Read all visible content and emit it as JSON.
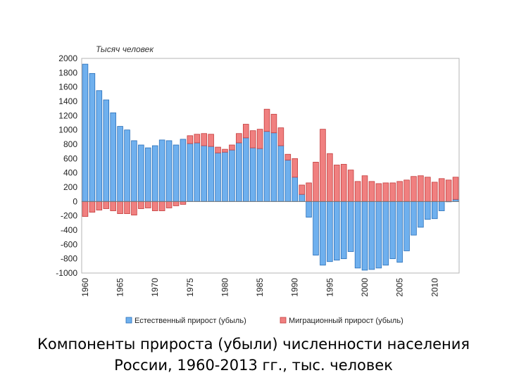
{
  "caption": {
    "line1": "Компоненты прироста (убыли) численности населения",
    "line2": "России, 1960-2013 гг., тыс. человек"
  },
  "chart_data": {
    "type": "bar",
    "stacked": true,
    "unit_label": "Тысяч человек",
    "x": [
      1960,
      1961,
      1962,
      1963,
      1964,
      1965,
      1966,
      1967,
      1968,
      1969,
      1970,
      1971,
      1972,
      1973,
      1974,
      1975,
      1976,
      1977,
      1978,
      1979,
      1980,
      1981,
      1982,
      1983,
      1984,
      1985,
      1986,
      1987,
      1988,
      1989,
      1990,
      1991,
      1992,
      1993,
      1994,
      1995,
      1996,
      1997,
      1998,
      1999,
      2000,
      2001,
      2002,
      2003,
      2004,
      2005,
      2006,
      2007,
      2008,
      2009,
      2010,
      2011,
      2012,
      2013
    ],
    "x_tick_labels": [
      "1960",
      "1965",
      "1970",
      "1975",
      "1980",
      "1985",
      "1990",
      "1995",
      "2000",
      "2005",
      "2010"
    ],
    "y_ticks": [
      2000,
      1800,
      1600,
      1400,
      1200,
      1000,
      800,
      600,
      400,
      200,
      0,
      -200,
      -400,
      -600,
      -800,
      -1000
    ],
    "ylim": [
      -1000,
      2000
    ],
    "grid": false,
    "legend_position": "bottom",
    "series": [
      {
        "name": "Естественный прирост (убыль)",
        "color": "#6fb0ee",
        "values": [
          1920,
          1790,
          1550,
          1420,
          1240,
          1050,
          1000,
          850,
          790,
          750,
          780,
          860,
          850,
          790,
          870,
          810,
          820,
          780,
          770,
          680,
          690,
          720,
          820,
          890,
          750,
          740,
          980,
          960,
          780,
          580,
          340,
          100,
          -220,
          -750,
          -890,
          -840,
          -820,
          -800,
          -700,
          -930,
          -960,
          -950,
          -930,
          -890,
          -800,
          -850,
          -690,
          -470,
          -360,
          -250,
          -240,
          -130,
          -5,
          30
        ]
      },
      {
        "name": "Миграционный прирост (убыль)",
        "color": "#f08080",
        "values": [
          -210,
          -150,
          -120,
          -100,
          -130,
          -170,
          -170,
          -190,
          -100,
          -90,
          -130,
          -130,
          -90,
          -60,
          -40,
          110,
          120,
          170,
          170,
          80,
          40,
          70,
          130,
          190,
          240,
          270,
          310,
          260,
          250,
          80,
          260,
          130,
          260,
          550,
          1010,
          670,
          510,
          520,
          440,
          280,
          360,
          280,
          250,
          260,
          260,
          280,
          300,
          350,
          360,
          340,
          270,
          320,
          300,
          310
        ]
      }
    ]
  }
}
